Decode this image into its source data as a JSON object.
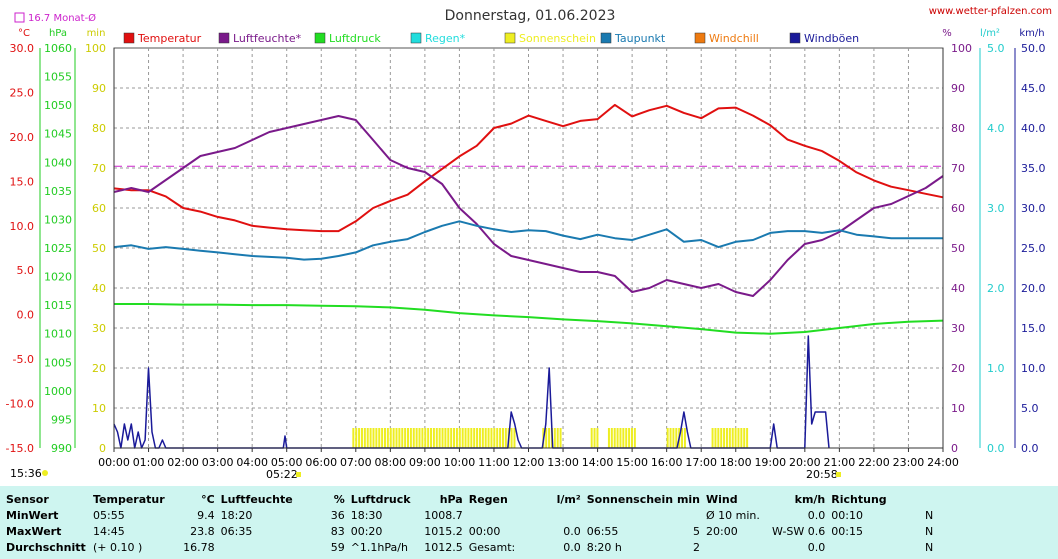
{
  "header": {
    "title": "Donnerstag, 01.06.2023",
    "site": "www.wetter-pfalzen.com",
    "monthly_avg_label": "16.7 Monat-Ø"
  },
  "axes_units": {
    "temp": "°C",
    "pressure": "hPa",
    "minutes": "min",
    "percent": "%",
    "rain": "l/m²",
    "wind": "km/h"
  },
  "legend": [
    {
      "label": "Temperatur",
      "color": "#e01010"
    },
    {
      "label": "Luftfeuchte*",
      "color": "#7a1a8a"
    },
    {
      "label": "Luftdruck",
      "color": "#22dd22"
    },
    {
      "label": "Regen*",
      "color": "#22dddd"
    },
    {
      "label": "Sonnenschein",
      "color": "#eeee22"
    },
    {
      "label": "Taupunkt",
      "color": "#1a7ab0"
    },
    {
      "label": "Windchill",
      "color": "#ee7a10"
    },
    {
      "label": "Windböen",
      "color": "#1a1a99"
    }
  ],
  "chart_data": {
    "type": "line",
    "x_ticks": [
      "00:00",
      "01:00",
      "02:00",
      "03:00",
      "04:00",
      "05:00",
      "06:00",
      "07:00",
      "08:00",
      "09:00",
      "10:00",
      "11:00",
      "12:00",
      "13:00",
      "14:00",
      "15:00",
      "16:00",
      "17:00",
      "18:00",
      "19:00",
      "20:00",
      "21:00",
      "22:00",
      "23:00",
      "24:00"
    ],
    "sunrise": "05:22",
    "sunset": "20:58",
    "now_label": "15:36",
    "xlim_hours": [
      0,
      24
    ],
    "y_axes": {
      "temp_c": {
        "ylim": [
          -15,
          30
        ],
        "ticks": [
          "30.0",
          "25.0",
          "20.0",
          "15.0",
          "10.0",
          "5.0",
          "0.0",
          "-5.0",
          "-10.0",
          "-15.0"
        ]
      },
      "pressure_hpa": {
        "ylim": [
          990,
          1060
        ],
        "ticks": [
          "1060",
          "1055",
          "1050",
          "1045",
          "1040",
          "1035",
          "1030",
          "1025",
          "1020",
          "1015",
          "1010",
          "1005",
          "1000",
          "995",
          "990"
        ]
      },
      "minutes_percent": {
        "ylim": [
          0,
          100
        ],
        "ticks": [
          "100",
          "90",
          "80",
          "70",
          "60",
          "50",
          "40",
          "30",
          "20",
          "10",
          "0"
        ]
      },
      "rain_l_m2": {
        "ylim": [
          0,
          5
        ],
        "ticks": [
          "5.0",
          "4.0",
          "3.0",
          "2.0",
          "1.0",
          "0.0"
        ]
      },
      "wind_kmh": {
        "ylim": [
          0,
          50
        ],
        "ticks": [
          "50.0",
          "45.0",
          "40.0",
          "35.0",
          "30.0",
          "25.0",
          "20.0",
          "15.0",
          "10.0",
          "5.0",
          "0.0"
        ]
      }
    },
    "grid": true,
    "monthly_avg_temp": 16.7,
    "series": [
      {
        "name": "Temperatur",
        "axis": "temp_c",
        "color": "#e01010",
        "x": [
          0,
          0.5,
          1,
          1.5,
          2,
          2.5,
          3,
          3.5,
          4,
          4.5,
          5,
          5.5,
          6,
          6.5,
          7,
          7.5,
          8,
          8.5,
          9,
          9.5,
          10,
          10.5,
          11,
          11.5,
          12,
          12.5,
          13,
          13.5,
          14,
          14.5,
          15,
          15.5,
          16,
          16.5,
          17,
          17.5,
          18,
          18.5,
          19,
          19.5,
          20,
          20.5,
          21,
          21.5,
          22,
          22.5,
          23,
          23.5,
          24
        ],
        "values": [
          14.2,
          14.0,
          14.0,
          13.3,
          12.0,
          11.6,
          11.0,
          10.6,
          10.0,
          9.8,
          9.6,
          9.5,
          9.4,
          9.4,
          10.5,
          12.0,
          12.8,
          13.5,
          15.0,
          16.4,
          17.8,
          19.0,
          21.0,
          21.5,
          22.4,
          21.8,
          21.2,
          21.8,
          22.0,
          23.6,
          22.3,
          23.0,
          23.5,
          22.7,
          22.1,
          23.2,
          23.3,
          22.4,
          21.3,
          19.7,
          19.0,
          18.4,
          17.3,
          16.0,
          15.1,
          14.4,
          14.0,
          13.6,
          13.2
        ]
      },
      {
        "name": "Luftfeuchte*",
        "axis": "minutes_percent",
        "color": "#7a1a8a",
        "x": [
          0,
          0.5,
          1,
          1.5,
          2,
          2.5,
          3,
          3.5,
          4,
          4.5,
          5,
          5.5,
          6,
          6.5,
          7,
          7.5,
          8,
          8.5,
          9,
          9.5,
          10,
          10.5,
          11,
          11.5,
          12,
          12.5,
          13,
          13.5,
          14,
          14.5,
          15,
          15.5,
          16,
          16.5,
          17,
          17.5,
          18,
          18.5,
          19,
          19.5,
          20,
          20.5,
          21,
          21.5,
          22,
          22.5,
          23,
          23.5,
          24
        ],
        "values": [
          64,
          65,
          64,
          67,
          70,
          73,
          74,
          75,
          77,
          79,
          80,
          81,
          82,
          83,
          82,
          77,
          72,
          70,
          69,
          66,
          60,
          56,
          51,
          48,
          47,
          46,
          45,
          44,
          44,
          43,
          39,
          40,
          42,
          41,
          40,
          41,
          39,
          38,
          42,
          47,
          51,
          52,
          54,
          57,
          60,
          61,
          63,
          65,
          68
        ]
      },
      {
        "name": "Luftdruck",
        "axis": "pressure_hpa",
        "color": "#22dd22",
        "x": [
          0,
          1,
          2,
          3,
          4,
          5,
          6,
          7,
          8,
          9,
          10,
          11,
          12,
          13,
          14,
          15,
          16,
          17,
          18,
          19,
          20,
          21,
          22,
          23,
          24
        ],
        "values": [
          1015.2,
          1015.2,
          1015.1,
          1015.1,
          1015.0,
          1015.0,
          1014.9,
          1014.8,
          1014.6,
          1014.2,
          1013.6,
          1013.2,
          1012.9,
          1012.5,
          1012.2,
          1011.8,
          1011.3,
          1010.8,
          1010.2,
          1010.0,
          1010.3,
          1011.0,
          1011.7,
          1012.1,
          1012.3
        ]
      },
      {
        "name": "Taupunkt",
        "axis": "temp_c",
        "color": "#1a7ab0",
        "x": [
          0,
          0.5,
          1,
          1.5,
          2,
          2.5,
          3,
          3.5,
          4,
          4.5,
          5,
          5.5,
          6,
          6.5,
          7,
          7.5,
          8,
          8.5,
          9,
          9.5,
          10,
          10.5,
          11,
          11.5,
          12,
          12.5,
          13,
          13.5,
          14,
          14.5,
          15,
          15.5,
          16,
          16.5,
          17,
          17.5,
          18,
          18.5,
          19,
          19.5,
          20,
          20.5,
          21,
          21.5,
          22,
          22.5,
          23,
          23.5,
          24
        ],
        "values": [
          7.6,
          7.8,
          7.4,
          7.6,
          7.4,
          7.2,
          7.0,
          6.8,
          6.6,
          6.5,
          6.4,
          6.2,
          6.3,
          6.6,
          7.0,
          7.8,
          8.2,
          8.5,
          9.3,
          10.0,
          10.5,
          10.0,
          9.6,
          9.3,
          9.5,
          9.4,
          8.9,
          8.5,
          9.0,
          8.6,
          8.4,
          9.0,
          9.6,
          8.2,
          8.4,
          7.6,
          8.2,
          8.4,
          9.2,
          9.4,
          9.4,
          9.2,
          9.5,
          9.0,
          8.8,
          8.6,
          8.6,
          8.6,
          8.6
        ]
      },
      {
        "name": "Windböen",
        "axis": "wind_kmh",
        "color": "#1a1a99",
        "x": [
          0,
          0.1,
          0.2,
          0.3,
          0.4,
          0.5,
          0.6,
          0.7,
          0.8,
          0.9,
          1.0,
          1.1,
          1.2,
          1.3,
          1.4,
          1.5,
          4.9,
          4.95,
          5.0,
          5.05,
          11.4,
          11.5,
          11.6,
          11.7,
          11.8,
          12.4,
          12.5,
          12.6,
          12.7,
          16.3,
          16.4,
          16.5,
          16.6,
          16.7,
          19.0,
          19.1,
          19.2,
          19.9,
          20.0,
          20.1,
          20.2,
          20.3,
          20.4,
          20.5,
          20.6,
          20.7
        ],
        "values": [
          3,
          2,
          0,
          3,
          1,
          3,
          0,
          2,
          0,
          1,
          10,
          2,
          0,
          0,
          1,
          0,
          0,
          1.5,
          0,
          0,
          0,
          4.5,
          3,
          1,
          0,
          0,
          3,
          10,
          0,
          0,
          2,
          4.5,
          2,
          0,
          0,
          3,
          0,
          0,
          0,
          14,
          3,
          4.5,
          4.5,
          4.5,
          4.5,
          0
        ]
      },
      {
        "name": "Sonnenschein",
        "axis": "minutes_percent",
        "color": "#eeee22",
        "intervals": [
          [
            6.9,
            11.6
          ],
          [
            12.4,
            12.9
          ],
          [
            13.8,
            14.0
          ],
          [
            14.3,
            15.1
          ],
          [
            16.0,
            16.5
          ],
          [
            17.3,
            18.3
          ]
        ],
        "value": 5
      }
    ]
  },
  "stats": {
    "headers": {
      "sensor": "Sensor",
      "temp": "Temperatur",
      "temp_unit": "°C",
      "hum": "Luftfeuchte",
      "hum_unit": "%",
      "press": "Luftdruck",
      "press_unit": "hPa",
      "rain": "Regen",
      "rain_unit": "l/m²",
      "sun": "Sonnenschein min",
      "wind": "Wind",
      "wind_unit": "km/h",
      "dir": "Richtung"
    },
    "rows": [
      {
        "label": "MinWert",
        "temp_time": "05:55",
        "temp": "9.4",
        "hum_time": "18:20",
        "hum": "36",
        "press_time": "18:30",
        "press": "1008.7",
        "rain_time": "",
        "rain": "",
        "sun_time": "",
        "sun": "",
        "wind_time": "Ø 10 min.",
        "wind": "0.0",
        "dir_time": "00:10",
        "dir": "N"
      },
      {
        "label": "MaxWert",
        "temp_time": "14:45",
        "temp": "23.8",
        "hum_time": "06:35",
        "hum": "83",
        "press_time": "00:20",
        "press": "1015.2",
        "rain_time": "00:00",
        "rain": "0.0",
        "sun_time": "06:55",
        "sun": "5",
        "wind_time": "20:00",
        "wind": "W-SW 0.6",
        "dir_time": "00:15",
        "dir": "N"
      },
      {
        "label": "Durchschnitt",
        "temp_time": "(+ 0.10 )",
        "temp": "16.78",
        "hum_time": "",
        "hum": "59",
        "press_time": "^1.1hPa/h",
        "press": "1012.5",
        "rain_time": "Gesamt:",
        "rain": "0.0",
        "sun_time": "8:20 h",
        "sun": "2",
        "wind_time": "",
        "wind": "0.0",
        "dir_time": "",
        "dir": "N"
      }
    ]
  }
}
